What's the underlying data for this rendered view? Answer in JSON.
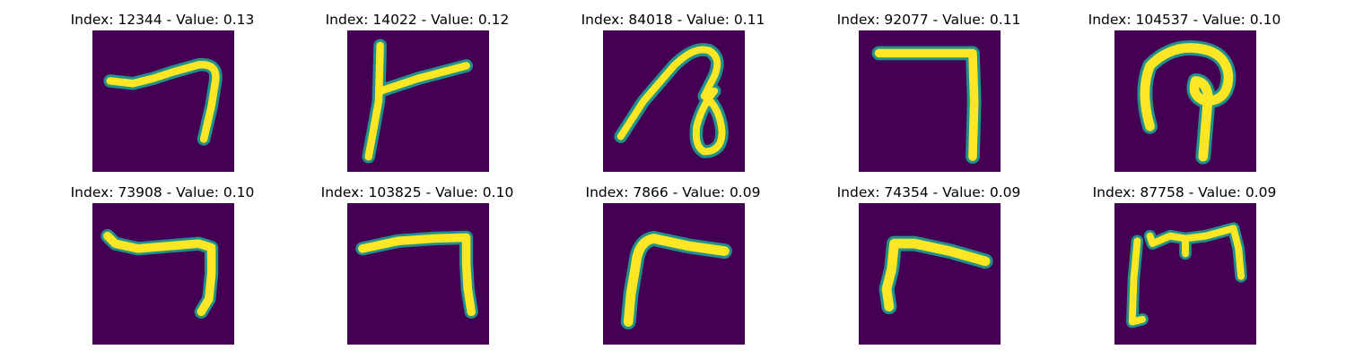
{
  "colors": {
    "background": "#440154",
    "glyph_edge": "#21918c",
    "glyph_core": "#fde725"
  },
  "panels": [
    {
      "index": "12344",
      "value": "0.13",
      "title": "Index: 12344 - Value: 0.13",
      "glyph_icon": "hooked-seven-icon"
    },
    {
      "index": "14022",
      "value": "0.12",
      "title": "Index: 14022 - Value: 0.12",
      "glyph_icon": "t-shape-icon"
    },
    {
      "index": "84018",
      "value": "0.11",
      "title": "Index: 84018 - Value: 0.11",
      "glyph_icon": "loop-curve-icon"
    },
    {
      "index": "92077",
      "value": "0.11",
      "title": "Index: 92077 - Value: 0.11",
      "glyph_icon": "right-angle-seven-icon"
    },
    {
      "index": "104537",
      "value": "0.10",
      "title": "Index: 104537 - Value: 0.10",
      "glyph_icon": "hook-loop-icon"
    },
    {
      "index": "73908",
      "value": "0.10",
      "title": "Index: 73908 - Value: 0.10",
      "glyph_icon": "wide-seven-icon"
    },
    {
      "index": "103825",
      "value": "0.10",
      "title": "Index: 103825 - Value: 0.10",
      "glyph_icon": "bracket-seven-icon"
    },
    {
      "index": "7866",
      "value": "0.09",
      "title": "Index: 7866 - Value: 0.09",
      "glyph_icon": "gamma-shape-icon"
    },
    {
      "index": "74354",
      "value": "0.09",
      "title": "Index: 74354 - Value: 0.09",
      "glyph_icon": "gamma-slant-icon"
    },
    {
      "index": "87758",
      "value": "0.09",
      "title": "Index: 87758 - Value: 0.09",
      "glyph_icon": "m-shape-icon"
    }
  ]
}
